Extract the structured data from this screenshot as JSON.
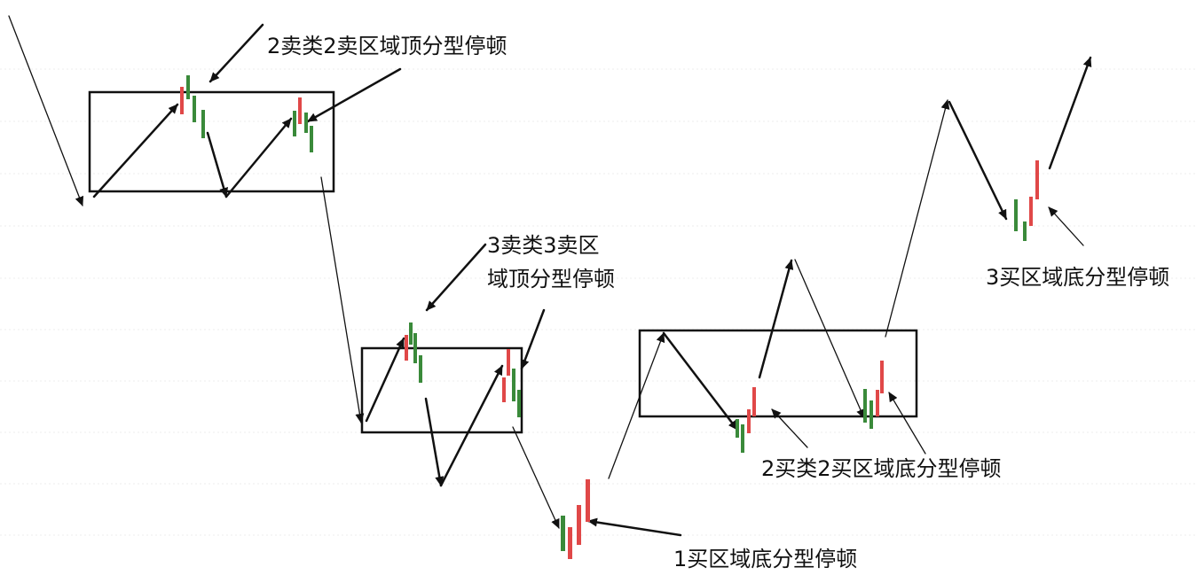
{
  "labels": {
    "sell2": "2卖类2卖区域顶分型停顿",
    "sell3_line1": "3卖类3卖区",
    "sell3_line2": "域顶分型停顿",
    "buy3": "3买区域底分型停顿",
    "buy2": "2买类2买区域底分型停顿",
    "buy1": "1买区域底分型停顿"
  },
  "colors": {
    "up": "#e04848",
    "down": "#3a8a3a",
    "line": "#111111",
    "grid": "#ececec",
    "background": "#ffffff"
  }
}
